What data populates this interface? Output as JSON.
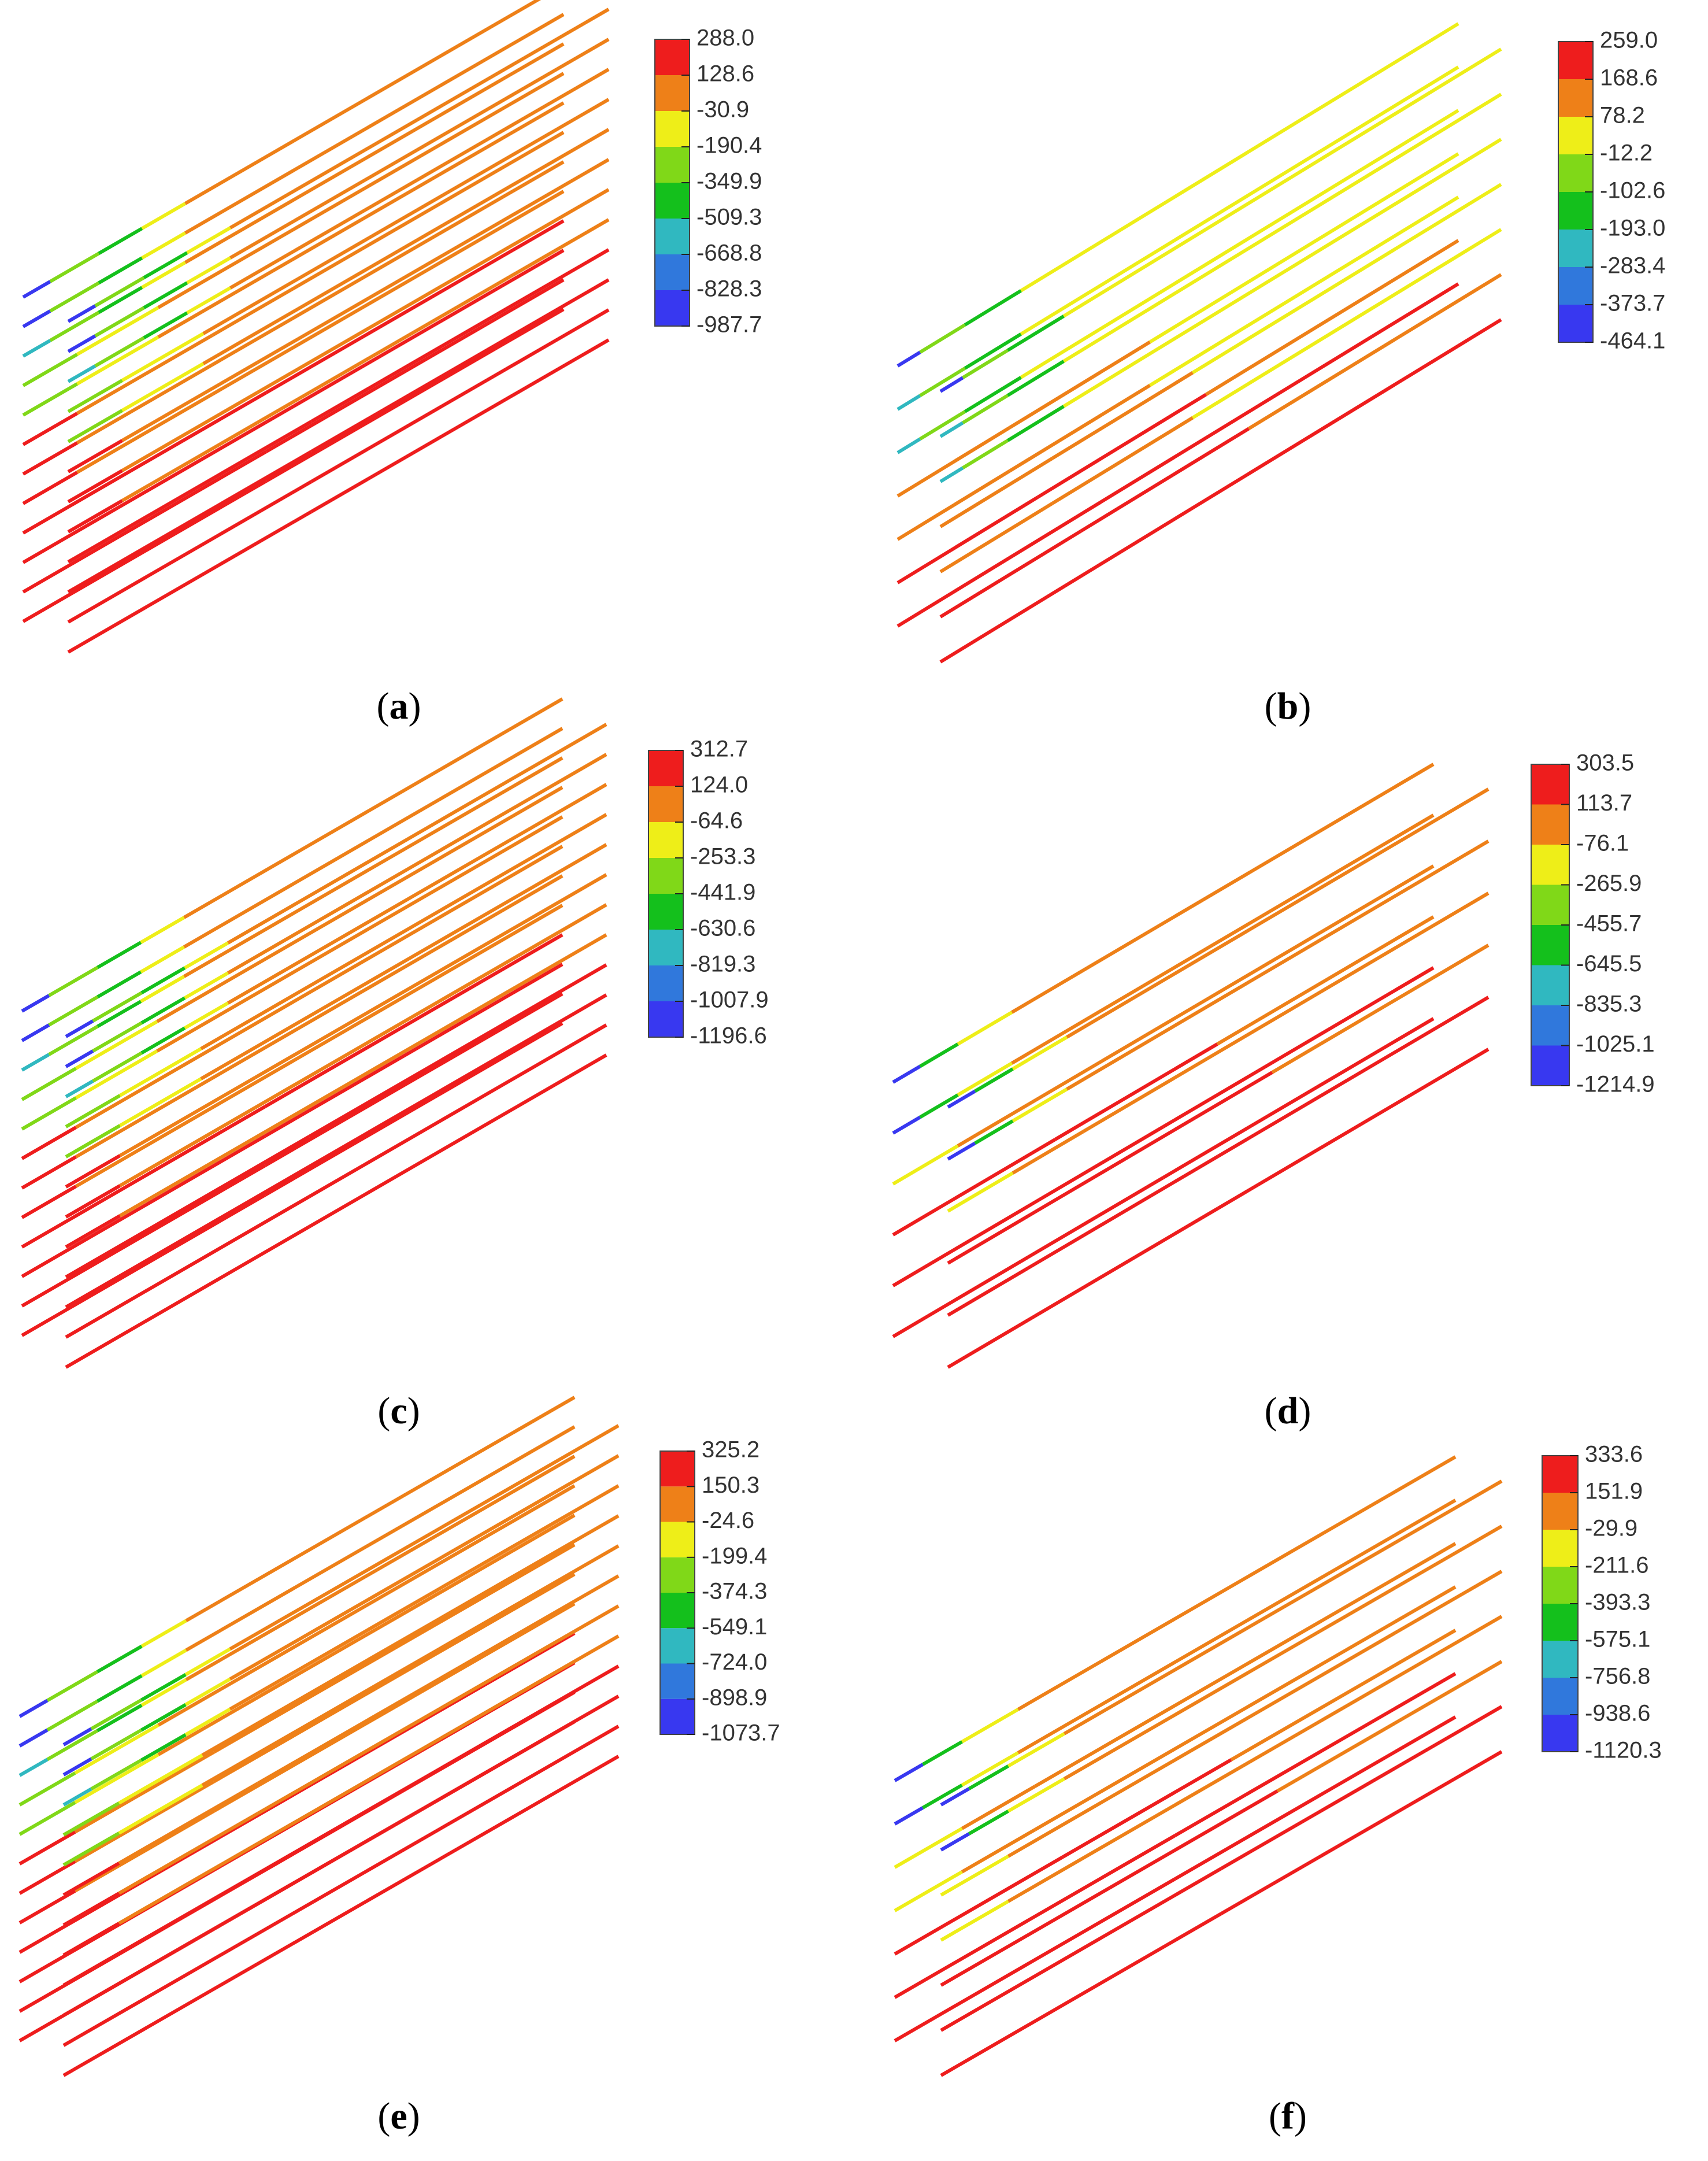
{
  "palette": [
    "#ee1d1d",
    "#ee8018",
    "#eeee18",
    "#80d818",
    "#14c01c",
    "#30b8c0",
    "#3078dc",
    "#3838f0"
  ],
  "panels": [
    {
      "id": "a",
      "caption_open": "(",
      "caption_letter": "a",
      "caption_close": ")",
      "legend": [
        "288.0",
        "128.6",
        "-30.9",
        "-190.4",
        "-349.9",
        "-509.3",
        "-668.8",
        "-828.3",
        "-987.7"
      ]
    },
    {
      "id": "b",
      "caption_open": "(",
      "caption_letter": "b",
      "caption_close": ")",
      "legend": [
        "259.0",
        "168.6",
        "78.2",
        "-12.2",
        "-102.6",
        "-193.0",
        "-283.4",
        "-373.7",
        "-464.1"
      ]
    },
    {
      "id": "c",
      "caption_open": "(",
      "caption_letter": "c",
      "caption_close": ")",
      "legend": [
        "312.7",
        "124.0",
        "-64.6",
        "-253.3",
        "-441.9",
        "-630.6",
        "-819.3",
        "-1007.9",
        "-1196.6"
      ]
    },
    {
      "id": "d",
      "caption_open": "(",
      "caption_letter": "d",
      "caption_close": ")",
      "legend": [
        "303.5",
        "113.7",
        "-76.1",
        "-265.9",
        "-455.7",
        "-645.5",
        "-835.3",
        "-1025.1",
        "-1214.9"
      ]
    },
    {
      "id": "e",
      "caption_open": "(",
      "caption_letter": "e",
      "caption_close": ")",
      "legend": [
        "325.2",
        "150.3",
        "-24.6",
        "-199.4",
        "-374.3",
        "-549.1",
        "-724.0",
        "-898.9",
        "-1073.7"
      ]
    },
    {
      "id": "f",
      "caption_open": "(",
      "caption_letter": "f",
      "caption_close": ")",
      "legend": [
        "333.6",
        "151.9",
        "-29.9",
        "-211.6",
        "-393.3",
        "-575.1",
        "-756.8",
        "-938.6",
        "-1120.3"
      ]
    }
  ]
}
